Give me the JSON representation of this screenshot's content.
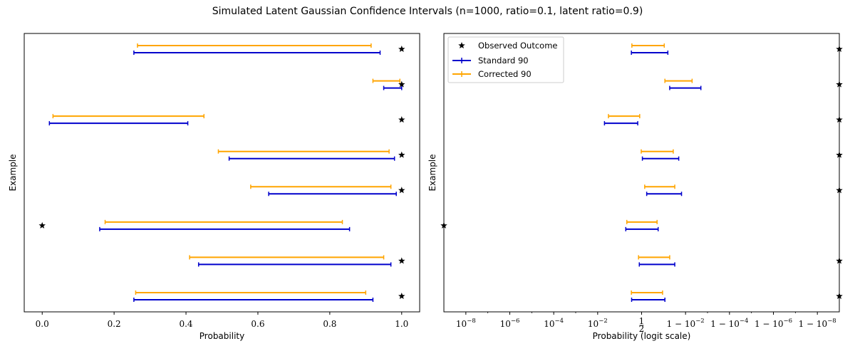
{
  "title": "Simulated Latent Gaussian Confidence Intervals (n=1000, ratio=0.1, latent ratio=0.9)",
  "colors": {
    "standard": "#0000cc",
    "corrected": "#ffa500",
    "observed": "#000000"
  },
  "legend": {
    "observed": "Observed Outcome",
    "standard": "Standard 90",
    "corrected": "Corrected 90"
  },
  "chart_data": [
    {
      "type": "interval",
      "title": "",
      "xlabel": "Probability",
      "ylabel": "Example",
      "xscale": "linear",
      "xlim": [
        -0.05,
        1.05
      ],
      "xticks": [
        0.0,
        0.2,
        0.4,
        0.6,
        0.8,
        1.0
      ],
      "xticklabels": [
        "0.0",
        "0.2",
        "0.4",
        "0.6",
        "0.8",
        "1.0"
      ],
      "legend": false,
      "rows": [
        {
          "standard": [
            0.255,
            0.92
          ],
          "corrected": [
            0.26,
            0.9
          ],
          "observed": 1
        },
        {
          "standard": [
            0.435,
            0.97
          ],
          "corrected": [
            0.41,
            0.95
          ],
          "observed": 1
        },
        {
          "standard": [
            0.16,
            0.855
          ],
          "corrected": [
            0.175,
            0.835
          ],
          "observed": 0
        },
        {
          "standard": [
            0.63,
            0.985
          ],
          "corrected": [
            0.58,
            0.97
          ],
          "observed": 1
        },
        {
          "standard": [
            0.52,
            0.98
          ],
          "corrected": [
            0.49,
            0.965
          ],
          "observed": 1
        },
        {
          "standard": [
            0.02,
            0.405
          ],
          "corrected": [
            0.03,
            0.45
          ],
          "observed": 1
        },
        {
          "standard": [
            0.95,
            1.0
          ],
          "corrected": [
            0.92,
            0.995
          ],
          "observed": 1
        },
        {
          "standard": [
            0.255,
            0.94
          ],
          "corrected": [
            0.265,
            0.915
          ],
          "observed": 1
        }
      ]
    },
    {
      "type": "interval",
      "title": "",
      "xlabel": "Probability (logit scale)",
      "ylabel": "Example",
      "xscale": "logit",
      "xticks": [
        "10^-8",
        "10^-6",
        "10^-4",
        "10^-2",
        "1/2",
        "1-10^-2",
        "1-10^-4",
        "1-10^-6",
        "1-10^-8"
      ],
      "xticklabels": [
        "10",
        "10",
        "10",
        "10",
        "1/2",
        "1 − 10",
        "1 − 10",
        "1 − 10",
        "1 − 10"
      ],
      "xtickexponents": [
        "−8",
        "−6",
        "−4",
        "−2",
        "",
        "−2",
        "−4",
        "−6",
        "−8"
      ],
      "legend": "top-left",
      "rows": [
        {
          "standard": [
            0.26,
            0.92
          ],
          "corrected": [
            0.255,
            0.9
          ],
          "observed": 1
        },
        {
          "standard": [
            0.44,
            0.97
          ],
          "corrected": [
            0.42,
            0.95
          ],
          "observed": 1
        },
        {
          "standard": [
            0.16,
            0.85
          ],
          "corrected": [
            0.175,
            0.835
          ],
          "observed": 0
        },
        {
          "standard": [
            0.63,
            0.985
          ],
          "corrected": [
            0.58,
            0.97
          ],
          "observed": 1
        },
        {
          "standard": [
            0.52,
            0.98
          ],
          "corrected": [
            0.49,
            0.965
          ],
          "observed": 1
        },
        {
          "standard": [
            0.02,
            0.4
          ],
          "corrected": [
            0.03,
            0.45
          ],
          "observed": 1
        },
        {
          "standard": [
            0.95,
            0.998
          ],
          "corrected": [
            0.92,
            0.995
          ],
          "observed": 1
        },
        {
          "standard": [
            0.255,
            0.94
          ],
          "corrected": [
            0.265,
            0.915
          ],
          "observed": 1
        }
      ]
    }
  ]
}
